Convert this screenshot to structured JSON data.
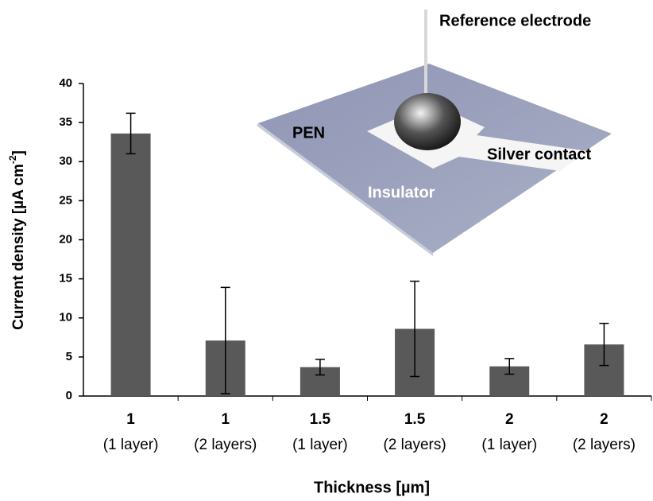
{
  "chart_data": {
    "type": "bar",
    "x_label": "Thickness [µm]",
    "y_label": {
      "text": "Current density [µA cm",
      "superscript": "-2",
      "suffix": "]"
    },
    "categories": [
      [
        "1",
        "(1 layer)"
      ],
      [
        "1",
        "(2 layers)"
      ],
      [
        "1.5",
        "(1 layer)"
      ],
      [
        "1.5",
        "(2 layers)"
      ],
      [
        "2",
        "(1 layer)"
      ],
      [
        "2",
        "(2 layers)"
      ]
    ],
    "values": [
      33.6,
      7.1,
      3.7,
      8.6,
      3.8,
      6.6
    ],
    "errors": [
      2.6,
      6.8,
      1.0,
      6.1,
      1.0,
      2.7
    ],
    "color": "#595959",
    "ylim": [
      0,
      40
    ],
    "yticks": [
      0,
      5,
      10,
      15,
      20,
      25,
      30,
      35,
      40
    ],
    "grid": false,
    "annotations": [
      "Reference electrode",
      "PEN",
      "Silver contact",
      "Insulator"
    ]
  }
}
